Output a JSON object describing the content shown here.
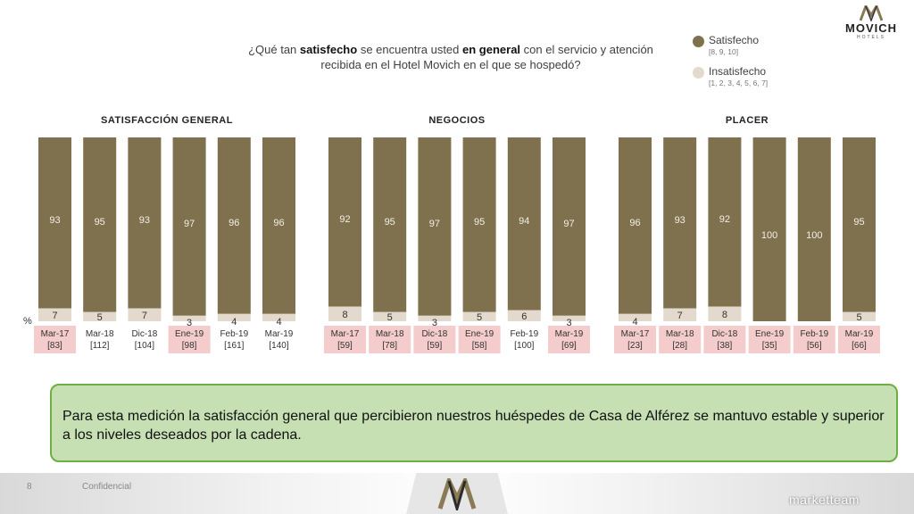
{
  "question": {
    "p1": "¿Qué tan ",
    "b1": "satisfecho",
    "p2": " se encuentra usted ",
    "b2": "en general",
    "p3": " con el servicio y atención recibida en el Hotel Movich en el que se hospedó?"
  },
  "legend": [
    {
      "name": "Satisfecho",
      "range": "[8, 9, 10]",
      "color": "#7f704e"
    },
    {
      "name": "Insatisfecho",
      "range": "[1, 2, 3, 4, 5, 6, 7]",
      "color": "#e3dacd"
    }
  ],
  "logo": {
    "word": "MOVICH",
    "sub": "HOTELS"
  },
  "pct_label": "%",
  "colors": {
    "satisfied": "#7f704e",
    "unsatisfied": "#e3dacd",
    "label_bg": "#f4cccc",
    "grid_text": "#333333"
  },
  "chart_data": [
    {
      "type": "bar",
      "stacked": true,
      "title": "SATISFACCIÓN GENERAL",
      "categories": [
        "Mar-17",
        "Mar-18",
        "Dic-18",
        "Ene-19",
        "Feb-19",
        "Mar-19"
      ],
      "bases": [
        "[83]",
        "[112]",
        "[104]",
        "[98]",
        "[161]",
        "[140]"
      ],
      "highlight": [
        true,
        false,
        false,
        true,
        false,
        false
      ],
      "series": [
        {
          "name": "Satisfecho",
          "values": [
            93,
            95,
            93,
            97,
            96,
            96
          ]
        },
        {
          "name": "Insatisfecho",
          "values": [
            7,
            5,
            7,
            3,
            4,
            4
          ]
        }
      ],
      "ylim": [
        0,
        100
      ]
    },
    {
      "type": "bar",
      "stacked": true,
      "title": "NEGOCIOS",
      "categories": [
        "Mar-17",
        "Mar-18",
        "Dic-18",
        "Ene-19",
        "Feb-19",
        "Mar-19"
      ],
      "bases": [
        "[59]",
        "[78]",
        "[59]",
        "[58]",
        "[100]",
        "[69]"
      ],
      "highlight": [
        true,
        true,
        true,
        true,
        false,
        true
      ],
      "series": [
        {
          "name": "Satisfecho",
          "values": [
            92,
            95,
            97,
            95,
            94,
            97
          ]
        },
        {
          "name": "Insatisfecho",
          "values": [
            8,
            5,
            3,
            5,
            6,
            3
          ]
        }
      ],
      "ylim": [
        0,
        100
      ]
    },
    {
      "type": "bar",
      "stacked": true,
      "title": "PLACER",
      "categories": [
        "Mar-17",
        "Mar-18",
        "Dic-18",
        "Ene-19",
        "Feb-19",
        "Mar-19"
      ],
      "bases": [
        "[23]",
        "[28]",
        "[38]",
        "[35]",
        "[56]",
        "[66]"
      ],
      "highlight": [
        true,
        true,
        true,
        true,
        true,
        true
      ],
      "series": [
        {
          "name": "Satisfecho",
          "values": [
            96,
            93,
            92,
            100,
            100,
            95
          ]
        },
        {
          "name": "Insatisfecho",
          "values": [
            4,
            7,
            8,
            null,
            null,
            5
          ]
        }
      ],
      "ylim": [
        0,
        100
      ]
    }
  ],
  "conclusion": "Para esta medición la satisfacción general que percibieron nuestros huéspedes de Casa de Alférez se mantuvo estable y superior a los niveles deseados por la cadena.",
  "footer": {
    "page": "8",
    "confidential": "Confidencial",
    "brand": "marketteam"
  }
}
